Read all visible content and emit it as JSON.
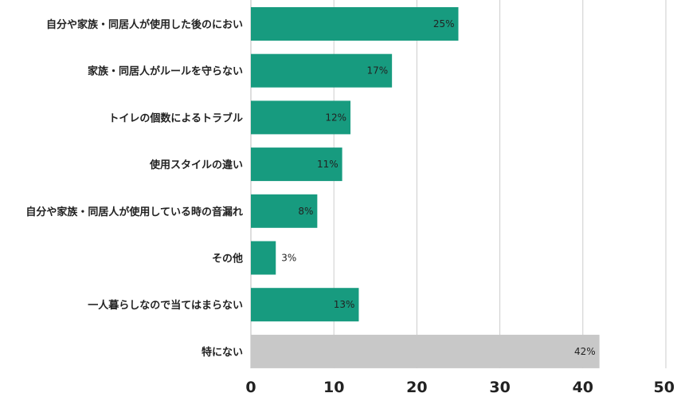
{
  "chart_data": {
    "type": "bar",
    "orientation": "horizontal",
    "title": "",
    "xlabel": "",
    "ylabel": "",
    "categories": [
      "自分や家族・同居人が使用した後のにおい",
      "家族・同居人がルールを守らない",
      "トイレの個数によるトラブル",
      "使用スタイルの違い",
      "自分や家族・同居人が使用している時の音漏れ",
      "その他",
      "一人暮らしなので当てはまらない",
      "特にない"
    ],
    "values": [
      25,
      17,
      12,
      11,
      8,
      3,
      13,
      42
    ],
    "data_labels": [
      "25%",
      "17%",
      "12%",
      "11%",
      "8%",
      "3%",
      "13%",
      "42%"
    ],
    "bar_colors": [
      "#179b7f",
      "#179b7f",
      "#179b7f",
      "#179b7f",
      "#179b7f",
      "#179b7f",
      "#179b7f",
      "#c8c8c8"
    ],
    "xlim": [
      0,
      50
    ],
    "x_ticks": [
      0,
      10,
      20,
      30,
      40,
      50
    ],
    "x_tick_labels": [
      "0",
      "10",
      "20",
      "30",
      "40",
      "50"
    ],
    "grid": "vertical"
  }
}
